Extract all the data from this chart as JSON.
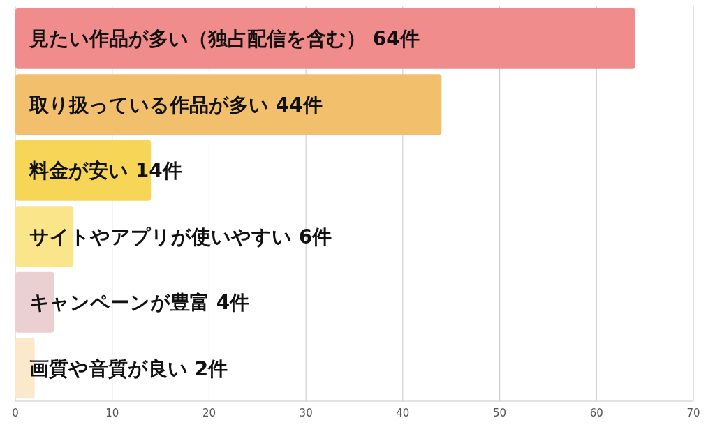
{
  "chart_data": {
    "type": "bar",
    "orientation": "horizontal",
    "categories": [
      "見たい作品が多い（独占配信を含む）",
      "取り扱っている作品が多い",
      "料金が安い",
      "サイトやアプリが使いやすい",
      "キャンペーンが豊富",
      "画質や音質が良い"
    ],
    "values": [
      64,
      44,
      14,
      6,
      4,
      2
    ],
    "value_labels": [
      "64件",
      "44件",
      "14件",
      "6件",
      "4件",
      "2件"
    ],
    "colors": [
      "#f08c8c",
      "#f2c06c",
      "#f7d556",
      "#fae58a",
      "#ead0d0",
      "#fbe9cb"
    ],
    "xlim": [
      0,
      70
    ],
    "xticks": [
      0,
      10,
      20,
      30,
      40,
      50,
      60,
      70
    ],
    "grid": "x"
  }
}
